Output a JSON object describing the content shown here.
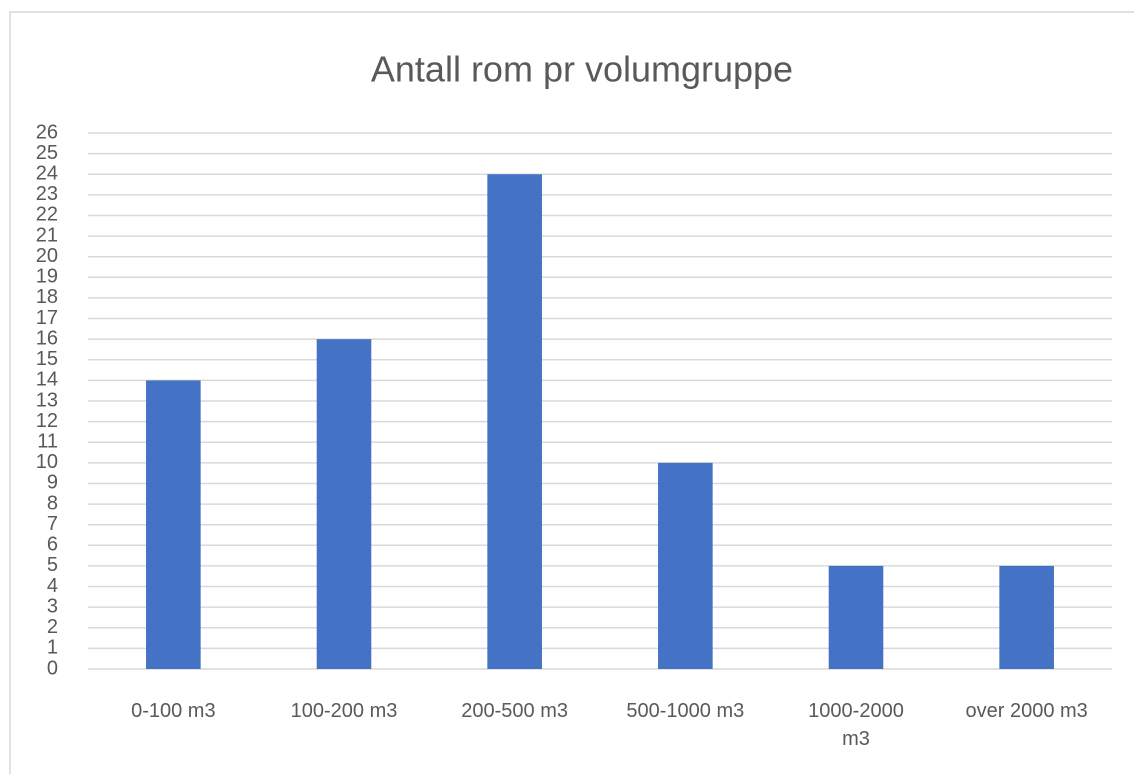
{
  "chart_data": {
    "type": "bar",
    "title": "Antall rom pr volumgruppe",
    "categories": [
      "0-100 m3",
      "100-200 m3",
      "200-500 m3",
      "500-1000 m3",
      "1000-2000 m3",
      "over 2000 m3"
    ],
    "values": [
      14,
      16,
      24,
      10,
      5,
      5
    ],
    "color": "#4472c4",
    "ylim": [
      0,
      26
    ],
    "yticks": [
      0,
      1,
      2,
      3,
      4,
      5,
      6,
      7,
      8,
      9,
      10,
      11,
      12,
      13,
      14,
      15,
      16,
      17,
      18,
      19,
      20,
      21,
      22,
      23,
      24,
      25,
      26
    ],
    "grid": true
  }
}
